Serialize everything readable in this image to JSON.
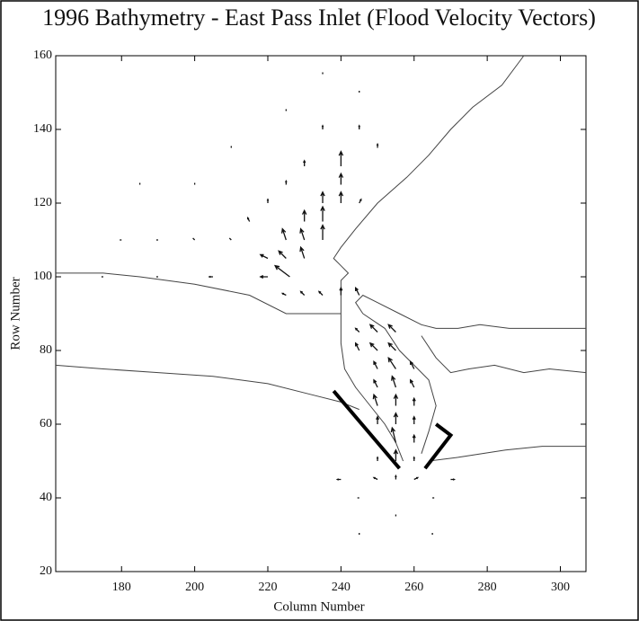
{
  "chart_data": {
    "type": "quiver",
    "title": "1996 Bathymetry - East Pass Inlet (Flood Velocity Vectors)",
    "x_label": "Column Number",
    "y_label": "Row Number",
    "xlim": [
      162,
      307
    ],
    "ylim": [
      20,
      160
    ],
    "xticks": [
      180,
      200,
      220,
      240,
      260,
      280,
      300
    ],
    "yticks": [
      20,
      40,
      60,
      80,
      100,
      120,
      140,
      160
    ],
    "line_color": "#444",
    "jetty_color": "#000",
    "arrow_color": "#111",
    "lines": [
      {
        "x": [
          290,
          284,
          276,
          270,
          264,
          258,
          250,
          244,
          240,
          238,
          240,
          242,
          240,
          240,
          240,
          241,
          244,
          248,
          252,
          255,
          257
        ],
        "y": [
          160,
          152,
          146,
          140,
          133,
          127,
          120,
          113,
          108,
          105,
          103,
          101,
          99,
          90,
          82,
          75,
          70,
          65,
          60,
          55,
          50
        ]
      },
      {
        "x": [
          162,
          175,
          185,
          200,
          215,
          225,
          240
        ],
        "y": [
          101,
          101,
          100,
          98,
          95,
          90,
          90
        ]
      },
      {
        "x": [
          246,
          244,
          246,
          250,
          256,
          262,
          266,
          272,
          278,
          286,
          296,
          307
        ],
        "y": [
          90,
          93,
          95,
          93,
          90,
          87,
          86,
          86,
          87,
          86,
          86,
          86
        ]
      },
      {
        "x": [
          246,
          252,
          256,
          260,
          264,
          266,
          264,
          262
        ],
        "y": [
          90,
          86,
          80,
          76,
          72,
          65,
          58,
          52
        ]
      },
      {
        "x": [
          262,
          266,
          270,
          275,
          282,
          290,
          297,
          307
        ],
        "y": [
          84,
          78,
          74,
          75,
          76,
          74,
          75,
          74
        ]
      },
      {
        "x": [
          264,
          272,
          285,
          295,
          307
        ],
        "y": [
          50,
          51,
          53,
          54,
          54
        ]
      },
      {
        "x": [
          162,
          175,
          190,
          205,
          220,
          232,
          240,
          245
        ],
        "y": [
          76,
          75,
          74,
          73,
          71,
          68,
          66,
          64
        ]
      }
    ],
    "jetties": [
      {
        "x": [
          238,
          256
        ],
        "y": [
          69,
          48
        ]
      },
      {
        "x": [
          263,
          270,
          266
        ],
        "y": [
          48,
          57,
          60
        ]
      }
    ],
    "vectors": [
      {
        "x": 240,
        "y": 130,
        "u": 0,
        "v": 4
      },
      {
        "x": 240,
        "y": 125,
        "u": 0,
        "v": 3
      },
      {
        "x": 240,
        "y": 120,
        "u": 0,
        "v": 3
      },
      {
        "x": 235,
        "y": 120,
        "u": 0,
        "v": 3
      },
      {
        "x": 235,
        "y": 115,
        "u": 0,
        "v": 4
      },
      {
        "x": 230,
        "y": 115,
        "u": 0,
        "v": 3
      },
      {
        "x": 235,
        "y": 110,
        "u": 0,
        "v": 4
      },
      {
        "x": 230,
        "y": 110,
        "u": -1,
        "v": 3
      },
      {
        "x": 225,
        "y": 110,
        "u": -1,
        "v": 3
      },
      {
        "x": 230,
        "y": 105,
        "u": -1,
        "v": 3
      },
      {
        "x": 225,
        "y": 105,
        "u": -2,
        "v": 2
      },
      {
        "x": 226,
        "y": 100,
        "u": -4,
        "v": 3
      },
      {
        "x": 220,
        "y": 105,
        "u": -2,
        "v": 1
      },
      {
        "x": 220,
        "y": 100,
        "u": -2,
        "v": 0
      },
      {
        "x": 245,
        "y": 85,
        "u": -1,
        "v": 1
      },
      {
        "x": 250,
        "y": 85,
        "u": -2,
        "v": 2
      },
      {
        "x": 255,
        "y": 85,
        "u": -2,
        "v": 2
      },
      {
        "x": 245,
        "y": 80,
        "u": -1,
        "v": 2
      },
      {
        "x": 250,
        "y": 80,
        "u": -2,
        "v": 2
      },
      {
        "x": 255,
        "y": 80,
        "u": -2,
        "v": 2
      },
      {
        "x": 250,
        "y": 75,
        "u": -1,
        "v": 2
      },
      {
        "x": 255,
        "y": 75,
        "u": -2,
        "v": 3
      },
      {
        "x": 260,
        "y": 75,
        "u": -1,
        "v": 2
      },
      {
        "x": 250,
        "y": 70,
        "u": -1,
        "v": 2
      },
      {
        "x": 255,
        "y": 70,
        "u": -1,
        "v": 3
      },
      {
        "x": 260,
        "y": 70,
        "u": -1,
        "v": 2
      },
      {
        "x": 250,
        "y": 65,
        "u": -1,
        "v": 3
      },
      {
        "x": 255,
        "y": 65,
        "u": 0,
        "v": 3
      },
      {
        "x": 260,
        "y": 65,
        "u": 0,
        "v": 2
      },
      {
        "x": 250,
        "y": 60,
        "u": 0,
        "v": 2
      },
      {
        "x": 255,
        "y": 60,
        "u": 0,
        "v": 3
      },
      {
        "x": 260,
        "y": 60,
        "u": 0,
        "v": 2
      },
      {
        "x": 255,
        "y": 55,
        "u": -1,
        "v": 4
      },
      {
        "x": 260,
        "y": 55,
        "u": 0,
        "v": 2
      },
      {
        "x": 255,
        "y": 50,
        "u": 0,
        "v": 3
      },
      {
        "x": 250,
        "y": 50,
        "u": 0,
        "v": 1
      },
      {
        "x": 260,
        "y": 50,
        "u": 0,
        "v": 1
      },
      {
        "x": 250,
        "y": 45,
        "u": -1,
        "v": 0.5
      },
      {
        "x": 260,
        "y": 45,
        "u": 1,
        "v": 0.5
      },
      {
        "x": 255,
        "y": 45,
        "u": 0,
        "v": 1
      },
      {
        "x": 245,
        "y": 95,
        "u": -1,
        "v": 2
      },
      {
        "x": 240,
        "y": 95,
        "u": 0,
        "v": 2
      },
      {
        "x": 235,
        "y": 95,
        "u": -1,
        "v": 1
      },
      {
        "x": 230,
        "y": 95,
        "u": -1,
        "v": 1
      },
      {
        "x": 225,
        "y": 95,
        "u": -1,
        "v": 0.5
      },
      {
        "x": 245,
        "y": 140,
        "u": 0,
        "v": 1
      },
      {
        "x": 235,
        "y": 140,
        "u": 0,
        "v": 1
      },
      {
        "x": 230,
        "y": 130,
        "u": 0,
        "v": 1.5
      },
      {
        "x": 225,
        "y": 125,
        "u": 0,
        "v": 1
      },
      {
        "x": 220,
        "y": 120,
        "u": 0,
        "v": 1
      },
      {
        "x": 215,
        "y": 115,
        "u": -0.5,
        "v": 1
      },
      {
        "x": 210,
        "y": 110,
        "u": -0.5,
        "v": 0.5
      },
      {
        "x": 200,
        "y": 110,
        "u": -0.5,
        "v": 0.5
      },
      {
        "x": 190,
        "y": 110,
        "u": -0.5,
        "v": 0
      },
      {
        "x": 180,
        "y": 110,
        "u": -0.5,
        "v": 0
      },
      {
        "x": 200,
        "y": 125,
        "u": 0,
        "v": 0.5
      },
      {
        "x": 185,
        "y": 125,
        "u": 0,
        "v": 0.5
      },
      {
        "x": 210,
        "y": 135,
        "u": 0,
        "v": 0.5
      },
      {
        "x": 225,
        "y": 145,
        "u": 0,
        "v": 0.5
      },
      {
        "x": 235,
        "y": 155,
        "u": 0,
        "v": 0.5
      },
      {
        "x": 245,
        "y": 150,
        "u": 0,
        "v": 0.5
      },
      {
        "x": 250,
        "y": 135,
        "u": 0,
        "v": 1
      },
      {
        "x": 245,
        "y": 120,
        "u": 0.5,
        "v": 1
      },
      {
        "x": 175,
        "y": 100,
        "u": -0.5,
        "v": 0
      },
      {
        "x": 190,
        "y": 100,
        "u": -0.5,
        "v": 0
      },
      {
        "x": 205,
        "y": 100,
        "u": -1,
        "v": 0
      },
      {
        "x": 245,
        "y": 40,
        "u": -0.5,
        "v": 0
      },
      {
        "x": 265,
        "y": 40,
        "u": 0.5,
        "v": 0
      },
      {
        "x": 255,
        "y": 35,
        "u": 0,
        "v": 0.5
      },
      {
        "x": 245,
        "y": 30,
        "u": 0,
        "v": 0.5
      },
      {
        "x": 265,
        "y": 30,
        "u": 0,
        "v": 0.5
      },
      {
        "x": 270,
        "y": 45,
        "u": 1,
        "v": 0
      },
      {
        "x": 240,
        "y": 45,
        "u": -1,
        "v": 0
      }
    ]
  }
}
